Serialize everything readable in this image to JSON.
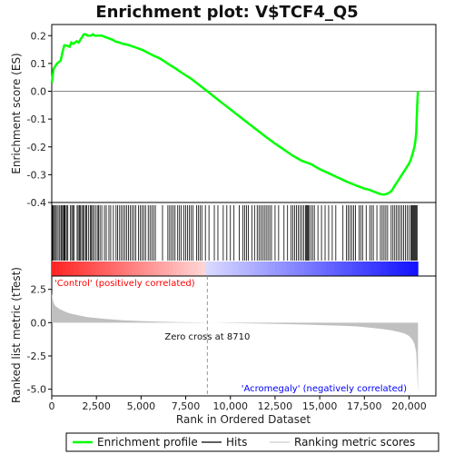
{
  "chart_data": {
    "type": "line",
    "title": "Enrichment plot: V$TCF4_Q5",
    "top_panel": {
      "ylabel": "Enrichment score (ES)",
      "ylim": [
        -0.4,
        0.24
      ],
      "yticks": [
        "0.2",
        "0.1",
        "0.0",
        "-0.1",
        "-0.2",
        "-0.3",
        "-0.4"
      ],
      "ytick_values": [
        0.2,
        0.1,
        0.0,
        -0.1,
        -0.2,
        -0.3,
        -0.4
      ],
      "series": [
        {
          "name": "Enrichment profile",
          "color": "#00ff00",
          "x": [
            0,
            100,
            200,
            300,
            400,
            500,
            600,
            700,
            800,
            1000,
            1100,
            1200,
            1300,
            1400,
            1500,
            1600,
            1700,
            1800,
            1900,
            2000,
            2100,
            2200,
            2300,
            2400,
            2600,
            2800,
            3000,
            3200,
            3400,
            3600,
            3800,
            4000,
            4200,
            4500,
            4800,
            5100,
            5400,
            5700,
            6000,
            6300,
            6600,
            6900,
            7200,
            7500,
            7800,
            8100,
            8400,
            8710,
            9000,
            9500,
            10000,
            10500,
            11000,
            11500,
            12000,
            12500,
            13000,
            13500,
            14000,
            14500,
            15000,
            15500,
            16000,
            16500,
            17000,
            17500,
            17800,
            18000,
            18200,
            18400,
            18600,
            18800,
            19000,
            19100,
            19200,
            19300,
            19400,
            19500,
            19600,
            19700,
            19800,
            19900,
            20000,
            20100,
            20200,
            20300,
            20350,
            20400,
            20430,
            20460,
            20480,
            20500
          ],
          "values": [
            0.03,
            0.08,
            0.09,
            0.1,
            0.105,
            0.11,
            0.14,
            0.165,
            0.165,
            0.16,
            0.175,
            0.17,
            0.175,
            0.18,
            0.175,
            0.185,
            0.195,
            0.205,
            0.205,
            0.2,
            0.2,
            0.2,
            0.205,
            0.2,
            0.2,
            0.2,
            0.195,
            0.19,
            0.185,
            0.178,
            0.175,
            0.17,
            0.168,
            0.162,
            0.155,
            0.148,
            0.138,
            0.128,
            0.12,
            0.108,
            0.095,
            0.083,
            0.07,
            0.057,
            0.045,
            0.03,
            0.015,
            0.0,
            -0.015,
            -0.04,
            -0.065,
            -0.09,
            -0.115,
            -0.14,
            -0.165,
            -0.188,
            -0.21,
            -0.232,
            -0.25,
            -0.262,
            -0.28,
            -0.295,
            -0.31,
            -0.325,
            -0.338,
            -0.35,
            -0.355,
            -0.36,
            -0.365,
            -0.37,
            -0.372,
            -0.368,
            -0.36,
            -0.35,
            -0.34,
            -0.33,
            -0.32,
            -0.31,
            -0.3,
            -0.29,
            -0.28,
            -0.27,
            -0.26,
            -0.245,
            -0.225,
            -0.2,
            -0.18,
            -0.15,
            -0.1,
            -0.05,
            -0.02,
            0.0
          ]
        }
      ]
    },
    "hits": {
      "name": "Hits",
      "positions": [
        30,
        80,
        140,
        200,
        260,
        350,
        420,
        510,
        560,
        620,
        680,
        720,
        760,
        850,
        900,
        1050,
        1120,
        1180,
        1240,
        1420,
        1480,
        1550,
        1610,
        1680,
        1750,
        1820,
        1900,
        1950,
        2050,
        2150,
        2200,
        2280,
        2350,
        2450,
        2550,
        2620,
        2700,
        2800,
        2950,
        3050,
        3200,
        3300,
        3450,
        3600,
        3680,
        3800,
        3900,
        4000,
        4100,
        4200,
        4300,
        4400,
        4500,
        4600,
        4700,
        4850,
        4950,
        5050,
        5150,
        5250,
        5400,
        5500,
        5600,
        5700,
        5800,
        6200,
        6500,
        6600,
        6700,
        6800,
        6900,
        7050,
        7150,
        7250,
        7400,
        7500,
        7600,
        7700,
        7800,
        7900,
        8100,
        8200,
        8300,
        8400,
        8600,
        8800,
        9100,
        9300,
        9600,
        9800,
        10000,
        10200,
        10500,
        10700,
        10800,
        10900,
        11000,
        11200,
        11350,
        11500,
        11600,
        11700,
        11800,
        11900,
        12000,
        12100,
        12200,
        12300,
        12500,
        12700,
        13000,
        13200,
        13400,
        13500,
        13600,
        13700,
        13800,
        13900,
        14000,
        14100,
        14200,
        14250,
        14300,
        14350,
        14400,
        14500,
        14600,
        14700,
        14900,
        15100,
        15300,
        15500,
        15700,
        15900,
        16300,
        16500,
        16600,
        16700,
        16800,
        16900,
        17000,
        17200,
        17300,
        17400,
        17600,
        17800,
        17900,
        18000,
        18200,
        18400,
        18500,
        18600,
        18700,
        18800,
        19000,
        19100,
        19200,
        19300,
        19400,
        19500,
        19600,
        19700,
        19800,
        19900,
        20000,
        20100,
        20150,
        20200,
        20250,
        20300,
        20350,
        20400,
        20450
      ],
      "color": "#000000"
    },
    "bottom_panel": {
      "ylabel": "Ranked list metric (tTest)",
      "xlabel": "Rank in Ordered Dataset",
      "ylim": [
        -5.5,
        3.5
      ],
      "yticks": [
        "2.5",
        "0.0",
        "-2.5",
        "-5.0"
      ],
      "ytick_values": [
        2.5,
        0.0,
        -2.5,
        -5.0
      ],
      "xlim": [
        0,
        21500
      ],
      "xticks": [
        "0",
        "2,500",
        "5,000",
        "7,500",
        "10,000",
        "12,500",
        "15,000",
        "17,500",
        "20,000"
      ],
      "xtick_values": [
        0,
        2500,
        5000,
        7500,
        10000,
        12500,
        15000,
        17500,
        20000
      ],
      "metric_x": [
        0,
        50,
        100,
        200,
        400,
        700,
        1000,
        1500,
        2000,
        3000,
        4000,
        5000,
        6000,
        7000,
        8000,
        8710,
        10000,
        12000,
        14000,
        16000,
        17000,
        17500,
        18000,
        18500,
        19000,
        19500,
        19800,
        20000,
        20200,
        20300,
        20400,
        20450,
        20500
      ],
      "metric_values": [
        2.2,
        1.8,
        1.5,
        1.25,
        1.05,
        0.85,
        0.7,
        0.55,
        0.42,
        0.28,
        0.18,
        0.12,
        0.07,
        0.04,
        0.02,
        0.0,
        -0.03,
        -0.08,
        -0.14,
        -0.22,
        -0.28,
        -0.33,
        -0.4,
        -0.48,
        -0.58,
        -0.72,
        -0.85,
        -1.0,
        -1.3,
        -1.6,
        -2.2,
        -3.5,
        -5.3
      ],
      "fill_color": "#c0c0c0",
      "zero_cross_label": "Zero cross at 8710",
      "zero_cross": 8710,
      "positive_label": "'Control' (positively correlated)",
      "negative_label": "'Acromegaly' (negatively correlated)",
      "positive_color": "#ff0000",
      "negative_color": "#0000ff"
    },
    "legend": {
      "placement": "bottom",
      "items": [
        {
          "label": "Enrichment profile",
          "color": "#00ff00"
        },
        {
          "label": "Hits",
          "color": "#000000"
        },
        {
          "label": "Ranking metric scores",
          "color": "#c0c0c0"
        }
      ]
    }
  }
}
